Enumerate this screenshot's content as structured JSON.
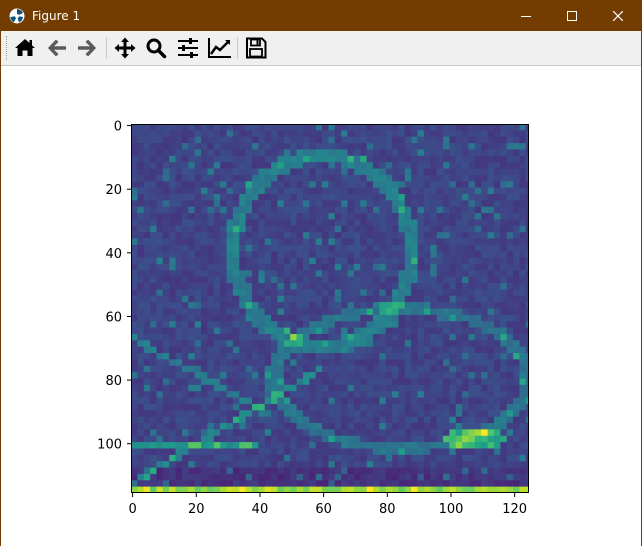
{
  "window": {
    "title": "Figure 1",
    "titlebar_color": "#733c00"
  },
  "toolbar": {
    "buttons": [
      {
        "name": "home",
        "icon": "home-icon"
      },
      {
        "name": "back",
        "icon": "arrow-left-icon"
      },
      {
        "name": "forward",
        "icon": "arrow-right-icon"
      },
      {
        "name": "pan",
        "icon": "move-icon"
      },
      {
        "name": "zoom",
        "icon": "magnifier-icon"
      },
      {
        "name": "configure-subplots",
        "icon": "sliders-icon"
      },
      {
        "name": "edit-axes",
        "icon": "line-chart-icon"
      },
      {
        "name": "save",
        "icon": "floppy-disk-icon"
      }
    ]
  },
  "chart_data": {
    "type": "heatmap",
    "colormap": "viridis",
    "description_kind": "edge-filtered grayscale image of a dog",
    "x": {
      "ticks": [
        0,
        20,
        40,
        60,
        80,
        100,
        120
      ],
      "range": [
        -0.5,
        124.5
      ]
    },
    "y": {
      "ticks": [
        0,
        20,
        40,
        60,
        80,
        100
      ],
      "range": [
        -0.5,
        115.5
      ],
      "inverted": true
    },
    "image_width": 125,
    "image_height": 116
  }
}
